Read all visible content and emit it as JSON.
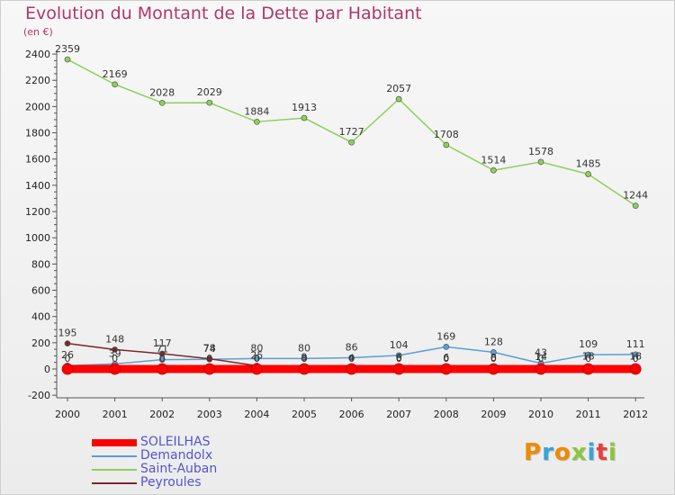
{
  "header": {
    "title": "Evolution du Montant de la Dette par Habitant",
    "unit": "(en €)"
  },
  "logo": {
    "text": "Proxiti",
    "colors": [
      "#f08a00",
      "#3aa3d8",
      "#f08a00",
      "#8cc63e",
      "#3aa3d8",
      "#e8403c",
      "#8cc63e"
    ]
  },
  "colors": {
    "title": "#b0366a",
    "axis": "#555555",
    "legend_text": "#5555cc"
  },
  "chart_data": {
    "type": "line",
    "title": "Evolution du Montant de la Dette par Habitant",
    "subtitle": "(en €)",
    "xlabel": "",
    "ylabel": "",
    "x": [
      "2000",
      "2001",
      "2002",
      "2003",
      "2004",
      "2005",
      "2006",
      "2007",
      "2008",
      "2009",
      "2010",
      "2011",
      "2012"
    ],
    "ylim": [
      -200,
      2400
    ],
    "yticks": [
      "-200",
      "0",
      "200",
      "400",
      "600",
      "800",
      "1000",
      "1200",
      "1400",
      "1600",
      "1800",
      "2000",
      "2200",
      "2400"
    ],
    "grid": false,
    "legend_position": "bottom-left",
    "series": [
      {
        "name": "SOLEILHAS",
        "color": "#ff0000",
        "values": [
          0,
          0,
          0,
          0,
          0,
          0,
          0,
          0,
          0,
          0,
          0,
          0,
          0
        ],
        "labels": [
          "0",
          "0",
          "0",
          "0",
          "0",
          "0",
          "0",
          "0",
          "0",
          "0",
          "0",
          "0",
          "0"
        ]
      },
      {
        "name": "Demandolx",
        "color": "#5a9fd4",
        "values": [
          26,
          39,
          71,
          74,
          80,
          80,
          86,
          104,
          169,
          128,
          43,
          109,
          111
        ],
        "labels": [
          "26",
          "39",
          "71",
          "74",
          "80",
          "80",
          "86",
          "104",
          "169",
          "128",
          "43",
          "109",
          "111"
        ]
      },
      {
        "name": "Saint-Auban",
        "color": "#8ed05a",
        "values": [
          2359,
          2169,
          2028,
          2029,
          1884,
          1913,
          1727,
          2057,
          1708,
          1514,
          1578,
          1485,
          1244
        ],
        "labels": [
          "2359",
          "2169",
          "2028",
          "2029",
          "1884",
          "1913",
          "1727",
          "2057",
          "1708",
          "1514",
          "1578",
          "1485",
          "1244"
        ]
      },
      {
        "name": "Peyroules",
        "color": "#7a2a2a",
        "values": [
          195,
          148,
          117,
          78,
          25,
          9,
          4,
          6,
          6,
          8,
          14,
          18,
          18
        ],
        "labels": [
          "195",
          "148",
          "117",
          "78",
          "25",
          "9",
          "4",
          "6",
          "6",
          "8",
          "14",
          "18",
          "18"
        ]
      }
    ]
  }
}
